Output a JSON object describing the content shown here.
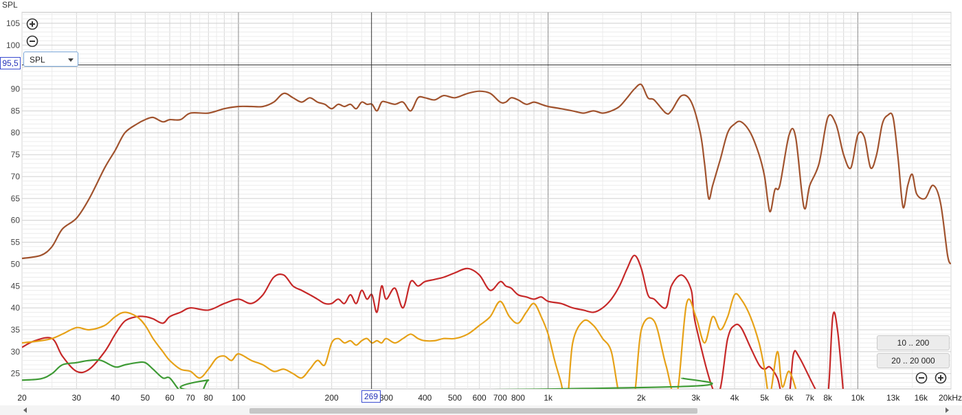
{
  "window": {
    "title": "SPL"
  },
  "controls": {
    "zoom_in_icon": "zoom-in-icon",
    "zoom_out_icon": "zoom-out-icon",
    "measure_select": "SPL",
    "cursor_y_readout": "95,5",
    "cursor_x_readout": "269",
    "range_buttons": [
      "10 .. 200",
      "20 .. 20 000"
    ]
  },
  "chart_data": {
    "type": "line",
    "title": "SPL",
    "xlabel": "",
    "ylabel": "SPL",
    "x_scale": "log",
    "xlim": [
      20,
      20000
    ],
    "ylim": [
      21.5,
      107.5
    ],
    "grid": true,
    "legend": "none",
    "x_tick_labels": [
      {
        "v": 20,
        "t": "20"
      },
      {
        "v": 30,
        "t": "30"
      },
      {
        "v": 40,
        "t": "40"
      },
      {
        "v": 50,
        "t": "50"
      },
      {
        "v": 60,
        "t": "60"
      },
      {
        "v": 70,
        "t": "70"
      },
      {
        "v": 80,
        "t": "80"
      },
      {
        "v": 100,
        "t": "100"
      },
      {
        "v": 200,
        "t": "200"
      },
      {
        "v": 300,
        "t": "300"
      },
      {
        "v": 400,
        "t": "400"
      },
      {
        "v": 500,
        "t": "500"
      },
      {
        "v": 600,
        "t": "600"
      },
      {
        "v": 700,
        "t": "700"
      },
      {
        "v": 800,
        "t": "800"
      },
      {
        "v": 1000,
        "t": "1k"
      },
      {
        "v": 2000,
        "t": "2k"
      },
      {
        "v": 3000,
        "t": "3k"
      },
      {
        "v": 4000,
        "t": "4k"
      },
      {
        "v": 5000,
        "t": "5k"
      },
      {
        "v": 6000,
        "t": "6k"
      },
      {
        "v": 7000,
        "t": "7k"
      },
      {
        "v": 8000,
        "t": "8k"
      },
      {
        "v": 10000,
        "t": "10k"
      },
      {
        "v": 13000,
        "t": "13k"
      },
      {
        "v": 16000,
        "t": "16k"
      },
      {
        "v": 20000,
        "t": "20kHz"
      }
    ],
    "y_tick_labels": [
      25,
      30,
      35,
      40,
      45,
      50,
      55,
      60,
      65,
      70,
      75,
      80,
      85,
      90,
      100,
      105
    ],
    "cursor": {
      "x": 269,
      "y": 95.5
    },
    "series": [
      {
        "color": "#a0522d",
        "x": [
          20,
          23,
          25,
          27,
          30,
          33,
          37,
          40,
          43,
          47,
          50,
          53,
          57,
          60,
          65,
          70,
          80,
          90,
          100,
          110,
          120,
          130,
          140,
          150,
          160,
          170,
          180,
          190,
          200,
          210,
          220,
          230,
          240,
          250,
          260,
          270,
          280,
          290,
          300,
          320,
          340,
          360,
          380,
          400,
          430,
          460,
          500,
          550,
          600,
          650,
          700,
          730,
          760,
          800,
          850,
          900,
          950,
          1000,
          1100,
          1200,
          1300,
          1400,
          1500,
          1600,
          1700,
          1800,
          1900,
          2000,
          2100,
          2200,
          2400,
          2500,
          2700,
          2900,
          3100,
          3200,
          3300,
          3400,
          3600,
          3800,
          4000,
          4200,
          4500,
          4800,
          5000,
          5200,
          5400,
          5600,
          6000,
          6300,
          6700,
          7000,
          7500,
          8000,
          8500,
          9000,
          9500,
          10000,
          10500,
          11000,
          11500,
          12000,
          12500,
          13000,
          13500,
          14000,
          14500,
          15000,
          15500,
          16500,
          17500,
          18500,
          19500,
          20000
        ],
        "y": [
          51.3,
          52,
          54,
          58,
          60.5,
          65,
          72,
          76,
          80,
          82,
          83,
          83.5,
          82.5,
          83,
          83,
          84.5,
          84.5,
          85.5,
          86,
          86,
          86,
          87,
          89,
          88,
          87,
          88,
          87,
          86.5,
          85.5,
          86.5,
          86,
          86.5,
          85.5,
          87,
          86.5,
          86.5,
          85,
          87,
          87,
          86.5,
          87,
          85,
          88,
          88,
          87.5,
          88.5,
          88,
          89,
          89.5,
          89,
          87,
          87,
          88,
          87.5,
          86.5,
          87,
          86.5,
          86,
          85.5,
          85,
          84.5,
          85,
          84.5,
          85,
          86,
          88,
          90,
          91,
          88,
          87.5,
          84.5,
          85,
          88.5,
          87,
          80,
          73,
          65,
          68,
          74,
          80,
          82,
          82.5,
          80,
          75,
          70,
          62,
          67,
          68,
          79.5,
          79,
          63,
          68,
          73,
          83.5,
          82,
          75,
          72,
          79.5,
          79,
          72,
          75,
          82,
          84,
          83.5,
          74,
          63,
          68,
          70.5,
          66,
          65,
          68,
          64,
          52,
          50
        ]
      },
      {
        "color": "#c62828",
        "x": [
          20,
          22,
          25,
          27,
          30,
          33,
          37,
          40,
          43,
          47,
          50,
          53,
          57,
          60,
          65,
          70,
          80,
          90,
          100,
          110,
          120,
          130,
          140,
          150,
          160,
          170,
          180,
          190,
          200,
          210,
          220,
          230,
          240,
          250,
          260,
          270,
          280,
          290,
          300,
          320,
          340,
          360,
          380,
          400,
          430,
          460,
          500,
          550,
          600,
          650,
          700,
          730,
          760,
          800,
          850,
          900,
          950,
          1000,
          1100,
          1200,
          1300,
          1400,
          1500,
          1600,
          1700,
          1800,
          1900,
          2000,
          2100,
          2200,
          2400,
          2500,
          2700,
          2900,
          3000,
          3500,
          3800,
          4000,
          4200,
          4500,
          4800,
          5000,
          5200,
          5500,
          5700,
          6000,
          6200,
          6500,
          7500,
          8000,
          8300,
          8600,
          9000
        ],
        "y": [
          31,
          32.5,
          33,
          29,
          25.5,
          26,
          30,
          34,
          37,
          38,
          38,
          37.5,
          36.5,
          38,
          39,
          40,
          39.5,
          41,
          42,
          41,
          43,
          47,
          47.5,
          45,
          44,
          43,
          42,
          41,
          41,
          42,
          41,
          43,
          41,
          44,
          42,
          43,
          39,
          45,
          42,
          44.5,
          40,
          46,
          45,
          46,
          46.5,
          47,
          48,
          49,
          47.5,
          44,
          46,
          45,
          44.5,
          43,
          42.5,
          42,
          42.5,
          41.5,
          41,
          40,
          39.5,
          39,
          40,
          42,
          45,
          49,
          52,
          49,
          43,
          42,
          40,
          45,
          47.5,
          44,
          36,
          20,
          33,
          36,
          35.5,
          31,
          27,
          26,
          26.5,
          24,
          20,
          20,
          29.5,
          28.5,
          20,
          20,
          38,
          35,
          20
        ]
      },
      {
        "color": "#e6a117",
        "x": [
          20,
          23,
          25,
          27,
          30,
          33,
          37,
          40,
          43,
          47,
          50,
          53,
          57,
          60,
          65,
          70,
          75,
          80,
          85,
          90,
          95,
          100,
          110,
          120,
          130,
          140,
          150,
          160,
          170,
          180,
          190,
          200,
          210,
          220,
          230,
          240,
          250,
          260,
          270,
          280,
          290,
          300,
          320,
          340,
          360,
          380,
          400,
          430,
          460,
          500,
          550,
          600,
          650,
          700,
          750,
          800,
          850,
          900,
          950,
          1000,
          1050,
          1100,
          1150,
          1200,
          1300,
          1400,
          1500,
          1600,
          1700,
          1800,
          1900,
          2000,
          2200,
          2400,
          2600,
          2800,
          3000,
          3200,
          3400,
          3600,
          3800,
          4000,
          4200,
          4500,
          4800,
          5000,
          5200,
          5500,
          5700,
          6000,
          6400
        ],
        "y": [
          32,
          32.5,
          33,
          34,
          35.5,
          35,
          36,
          38,
          39,
          38,
          36,
          33,
          30,
          28,
          26,
          25.5,
          24,
          26,
          28.5,
          29,
          28,
          29.5,
          28,
          27,
          25.5,
          26,
          25,
          24,
          26,
          28,
          27,
          32,
          33,
          32,
          32.5,
          31.5,
          32.5,
          33,
          32,
          32.5,
          32,
          33,
          32,
          33,
          34,
          33,
          32.5,
          32.5,
          33,
          33,
          34,
          36,
          38,
          41.5,
          38,
          36.5,
          39,
          41,
          38,
          34,
          28,
          23,
          18,
          32,
          37,
          36,
          33,
          30,
          20,
          20,
          20,
          35,
          37,
          27,
          20,
          41,
          38,
          32,
          38,
          35,
          38,
          43,
          42,
          38,
          32,
          26,
          20,
          30,
          22,
          25.5,
          20
        ]
      },
      {
        "color": "#3d9a34",
        "x": [
          20,
          23,
          25,
          27,
          30,
          33,
          36,
          40,
          43,
          47,
          50,
          53,
          57,
          60,
          65,
          70,
          75,
          80,
          85,
          2600,
          2700
        ],
        "y": [
          23.5,
          23.8,
          25,
          27,
          27.5,
          28,
          28,
          26.5,
          27,
          27.5,
          27.5,
          26,
          24,
          24,
          21,
          21,
          20,
          23.5,
          21,
          22,
          24
        ]
      }
    ]
  }
}
